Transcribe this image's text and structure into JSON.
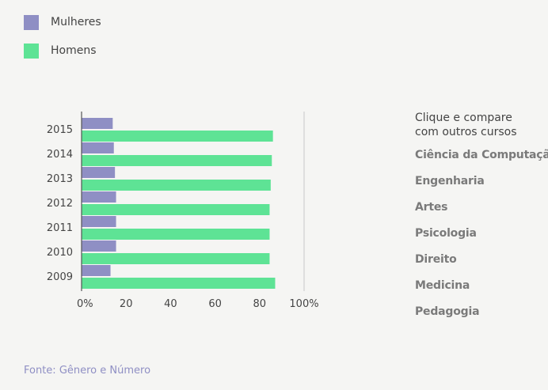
{
  "legend": {
    "items": [
      {
        "label": "Mulheres",
        "color": "#8f8fc4"
      },
      {
        "label": "Homens",
        "color": "#5ee395"
      }
    ]
  },
  "chart_data": {
    "type": "bar",
    "orientation": "horizontal",
    "categories": [
      "2015",
      "2014",
      "2013",
      "2012",
      "2011",
      "2010",
      "2009"
    ],
    "series": [
      {
        "name": "Mulheres",
        "color": "#8f8fc4",
        "values": [
          14,
          14.5,
          15,
          15.5,
          15.5,
          15.5,
          13
        ]
      },
      {
        "name": "Homens",
        "color": "#5ee395",
        "values": [
          86,
          85.5,
          85,
          84.5,
          84.5,
          84.5,
          87
        ]
      }
    ],
    "x_ticks": [
      "0%",
      "20",
      "40",
      "60",
      "80",
      "100%"
    ],
    "xlim": [
      0,
      100
    ],
    "grid": "vertical at 100",
    "legend_position": "top-left"
  },
  "sidebar": {
    "title_line1": "Clique e compare",
    "title_line2": "com outros cursos",
    "courses": [
      "Ciência da Computação",
      "Engenharia",
      "Artes",
      "Psicologia",
      "Direito",
      "Medicina",
      "Pedagogia"
    ]
  },
  "source": "Fonte: Gênero e Número"
}
